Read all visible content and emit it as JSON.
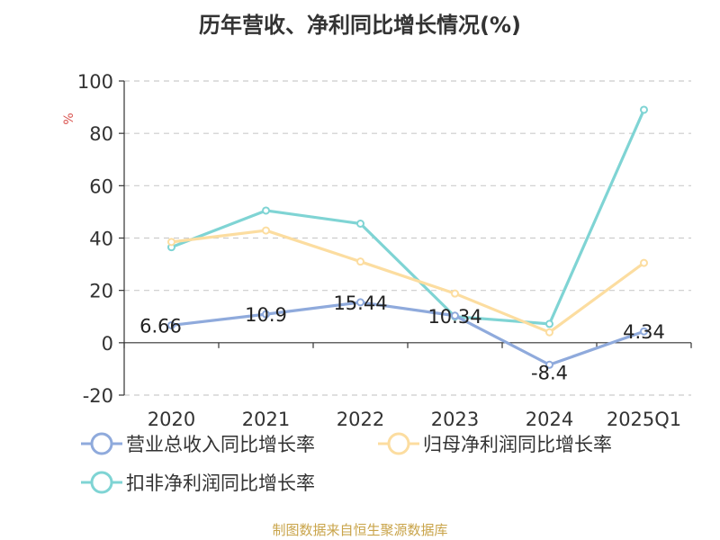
{
  "chart_data": {
    "type": "line",
    "title": "历年营收、净利同比增长情况(%)",
    "ylabel": "%",
    "categories": [
      "2020",
      "2021",
      "2022",
      "2023",
      "2024",
      "2025Q1"
    ],
    "ylim": [
      -20,
      100
    ],
    "yticks": [
      100,
      80,
      60,
      40,
      20,
      0,
      -20
    ],
    "grid": true,
    "legend_position": "bottom",
    "series": [
      {
        "name": "营业总收入同比增长率",
        "color": "#8faadc",
        "values": [
          6.66,
          10.9,
          15.44,
          10.34,
          -8.4,
          4.34
        ],
        "data_labels": true
      },
      {
        "name": "归母净利润同比增长率",
        "color": "#fcdda0",
        "values": [
          38.5,
          42.9,
          31.0,
          18.8,
          4.0,
          30.5
        ],
        "data_labels": false
      },
      {
        "name": "扣非净利润同比增长率",
        "color": "#7fd4d4",
        "values": [
          36.5,
          50.5,
          45.5,
          10.0,
          7.2,
          89.0
        ],
        "data_labels": false
      }
    ]
  },
  "source": {
    "text": "制图数据来自恒生聚源数据库",
    "color": "#c9a44a"
  },
  "ylabel_color": "#d9534f"
}
